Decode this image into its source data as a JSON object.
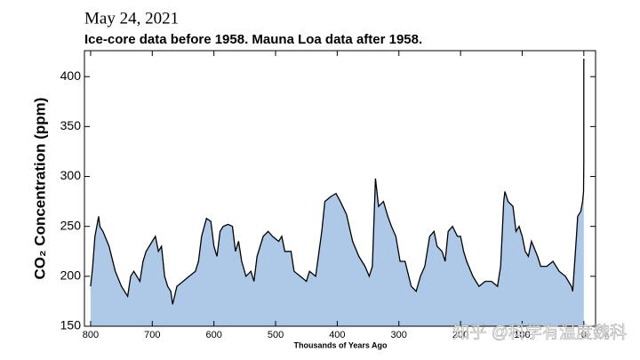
{
  "chart_data": {
    "type": "area",
    "title": "May 24, 2021",
    "subtitle": "Ice-core data before 1958. Mauna Loa data after 1958.",
    "ylabel": "CO₂ Concentration (ppm)",
    "xlabel": "Thousands of Years Ago",
    "annotation": "知乎 @科学有温度魏科",
    "color": "#aec9e8",
    "line_color": "#000000",
    "xlim": [
      810,
      -19
    ],
    "xticks": [
      800,
      700,
      600,
      500,
      400,
      300,
      200,
      100,
      0
    ],
    "ylim": [
      150,
      426
    ],
    "yticks": [
      150,
      200,
      250,
      300,
      350,
      400
    ],
    "x": [
      800,
      797,
      793,
      787,
      785,
      780,
      770,
      760,
      750,
      740,
      735,
      730,
      720,
      715,
      710,
      700,
      695,
      690,
      685,
      680,
      675,
      670,
      667,
      660,
      650,
      640,
      630,
      625,
      620,
      612,
      605,
      600,
      595,
      590,
      585,
      577,
      570,
      565,
      560,
      555,
      548,
      540,
      535,
      530,
      520,
      512,
      505,
      495,
      490,
      485,
      475,
      470,
      460,
      450,
      445,
      435,
      425,
      420,
      410,
      402,
      395,
      385,
      375,
      365,
      355,
      348,
      343,
      338,
      333,
      325,
      318,
      312,
      305,
      298,
      290,
      280,
      272,
      265,
      258,
      250,
      243,
      238,
      230,
      225,
      220,
      213,
      205,
      200,
      195,
      190,
      180,
      175,
      170,
      160,
      150,
      140,
      135,
      130,
      128,
      123,
      115,
      110,
      105,
      100,
      95,
      90,
      85,
      75,
      70,
      60,
      50,
      40,
      30,
      20,
      18,
      12,
      10,
      5,
      2,
      0.5,
      0.06,
      0
    ],
    "values": [
      190,
      207,
      240,
      260,
      250,
      245,
      230,
      205,
      190,
      180,
      200,
      205,
      195,
      215,
      225,
      235,
      240,
      225,
      230,
      200,
      190,
      185,
      172,
      190,
      195,
      200,
      205,
      215,
      240,
      258,
      255,
      230,
      220,
      245,
      250,
      252,
      250,
      225,
      235,
      215,
      200,
      205,
      195,
      220,
      240,
      245,
      240,
      235,
      240,
      225,
      225,
      205,
      200,
      195,
      205,
      200,
      245,
      275,
      280,
      283,
      275,
      262,
      235,
      220,
      210,
      200,
      210,
      298,
      270,
      275,
      260,
      250,
      240,
      215,
      215,
      190,
      185,
      200,
      210,
      240,
      245,
      230,
      225,
      215,
      245,
      250,
      240,
      240,
      225,
      215,
      200,
      195,
      190,
      195,
      195,
      190,
      210,
      275,
      285,
      275,
      270,
      245,
      250,
      240,
      225,
      220,
      235,
      220,
      210,
      210,
      215,
      205,
      200,
      190,
      185,
      240,
      260,
      265,
      275,
      285,
      315,
      418
    ]
  }
}
